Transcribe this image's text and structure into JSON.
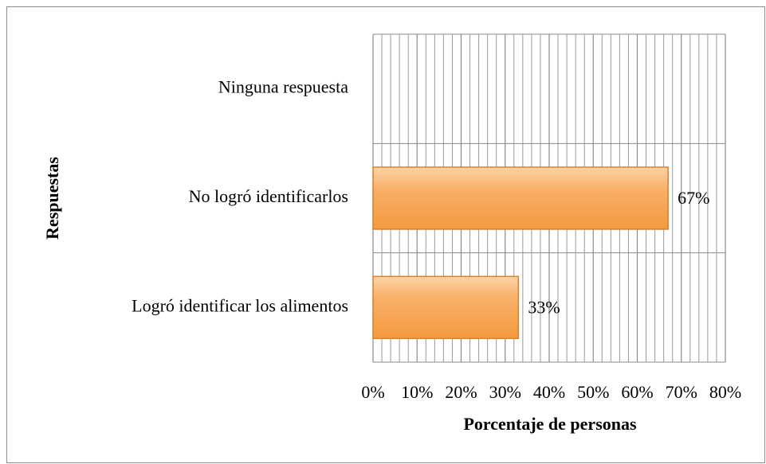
{
  "chart_data": {
    "type": "bar",
    "orientation": "horizontal",
    "categories": [
      "Ninguna respuesta",
      "No logró identificarlos",
      "Logró identificar los alimentos"
    ],
    "values": [
      null,
      67,
      33
    ],
    "value_labels": [
      null,
      "67%",
      "33%"
    ],
    "color": "#f7a85a",
    "xlim": [
      0,
      80
    ],
    "xticks": [
      {
        "value": 0,
        "label": "0%"
      },
      {
        "value": 10,
        "label": "10%"
      },
      {
        "value": 20,
        "label": "20%"
      },
      {
        "value": 30,
        "label": "30%"
      },
      {
        "value": 40,
        "label": "40%"
      },
      {
        "value": 50,
        "label": "50%"
      },
      {
        "value": 60,
        "label": "60%"
      },
      {
        "value": 70,
        "label": "70%"
      },
      {
        "value": 80,
        "label": "80%"
      }
    ],
    "xlabel": "Porcentaje de personas",
    "ylabel": "Respuestas",
    "grid": true,
    "minor_grid": true
  }
}
